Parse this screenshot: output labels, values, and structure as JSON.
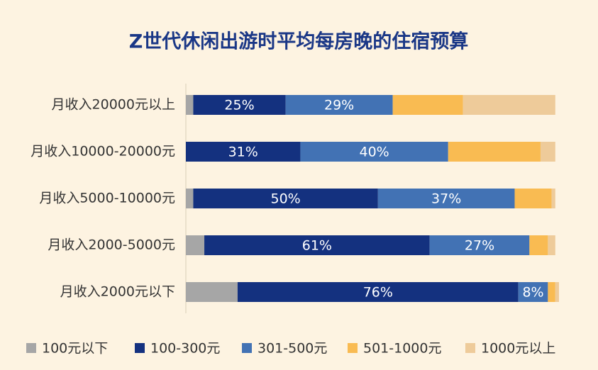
{
  "chart_data": {
    "type": "stacked-bar-horizontal",
    "title": "Z世代休闲出游时平均每房晚的住宿预算",
    "categories": [
      "月收入20000元以上",
      "月收入10000-20000元",
      "月收入5000-10000元",
      "月收入2000-5000元",
      "月收入2000元以下"
    ],
    "series": [
      {
        "name": "100元以下",
        "color": "#a6a6a6",
        "values": [
          2,
          0,
          2,
          5,
          14
        ]
      },
      {
        "name": "100-300元",
        "color": "#14317f",
        "values": [
          25,
          31,
          50,
          61,
          76
        ],
        "value_labels": [
          "25%",
          "31%",
          "50%",
          "61%",
          "76%"
        ]
      },
      {
        "name": "301-500元",
        "color": "#4272b4",
        "values": [
          29,
          40,
          37,
          27,
          8
        ],
        "value_labels": [
          "29%",
          "40%",
          "37%",
          "27%",
          "8%"
        ]
      },
      {
        "name": "501-1000元",
        "color": "#f9bb52",
        "values": [
          19,
          25,
          10,
          5,
          2
        ]
      },
      {
        "name": "1000元以上",
        "color": "#eecb9a",
        "values": [
          25,
          4,
          1,
          2,
          1
        ]
      }
    ],
    "legend": "bottom"
  }
}
